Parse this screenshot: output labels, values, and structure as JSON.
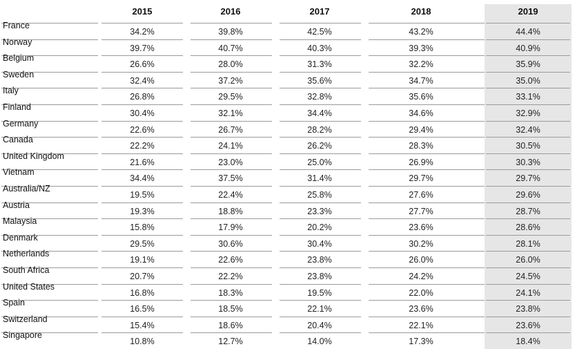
{
  "chart_data": {
    "type": "table",
    "columns": [
      "2015",
      "2016",
      "2017",
      "2018",
      "2019"
    ],
    "rows": [
      {
        "country": "France",
        "values": [
          "34.2%",
          "39.8%",
          "42.5%",
          "43.2%",
          "44.4%"
        ]
      },
      {
        "country": "Norway",
        "values": [
          "39.7%",
          "40.7%",
          "40.3%",
          "39.3%",
          "40.9%"
        ]
      },
      {
        "country": "Belgium",
        "values": [
          "26.6%",
          "28.0%",
          "31.3%",
          "32.2%",
          "35.9%"
        ]
      },
      {
        "country": "Sweden",
        "values": [
          "32.4%",
          "37.2%",
          "35.6%",
          "34.7%",
          "35.0%"
        ]
      },
      {
        "country": "Italy",
        "values": [
          "26.8%",
          "29.5%",
          "32.8%",
          "35.6%",
          "33.1%"
        ]
      },
      {
        "country": "Finland",
        "values": [
          "30.4%",
          "32.1%",
          "34.4%",
          "34.6%",
          "32.9%"
        ]
      },
      {
        "country": "Germany",
        "values": [
          "22.6%",
          "26.7%",
          "28.2%",
          "29.4%",
          "32.4%"
        ]
      },
      {
        "country": "Canada",
        "values": [
          "22.2%",
          "24.1%",
          "26.2%",
          "28.3%",
          "30.5%"
        ]
      },
      {
        "country": "United Kingdom",
        "values": [
          "21.6%",
          "23.0%",
          "25.0%",
          "26.9%",
          "30.3%"
        ]
      },
      {
        "country": "Vietnam",
        "values": [
          "34.4%",
          "37.5%",
          "31.4%",
          "29.7%",
          "29.7%"
        ]
      },
      {
        "country": "Australia/NZ",
        "values": [
          "19.5%",
          "22.4%",
          "25.8%",
          "27.6%",
          "29.6%"
        ]
      },
      {
        "country": "Austria",
        "values": [
          "19.3%",
          "18.8%",
          "23.3%",
          "27.7%",
          "28.7%"
        ]
      },
      {
        "country": "Malaysia",
        "values": [
          "15.8%",
          "17.9%",
          "20.2%",
          "23.6%",
          "28.6%"
        ]
      },
      {
        "country": "Denmark",
        "values": [
          "29.5%",
          "30.6%",
          "30.4%",
          "30.2%",
          "28.1%"
        ]
      },
      {
        "country": "Netherlands",
        "values": [
          "19.1%",
          "22.6%",
          "23.8%",
          "26.0%",
          "26.0%"
        ]
      },
      {
        "country": "South Africa",
        "values": [
          "20.7%",
          "22.2%",
          "23.8%",
          "24.2%",
          "24.5%"
        ]
      },
      {
        "country": "United States",
        "values": [
          "16.8%",
          "18.3%",
          "19.5%",
          "22.0%",
          "24.1%"
        ]
      },
      {
        "country": "Spain",
        "values": [
          "16.5%",
          "18.5%",
          "22.1%",
          "23.6%",
          "23.8%"
        ]
      },
      {
        "country": "Switzerland",
        "values": [
          "15.4%",
          "18.6%",
          "20.4%",
          "22.1%",
          "23.6%"
        ]
      },
      {
        "country": "Singapore",
        "values": [
          "10.8%",
          "12.7%",
          "14.0%",
          "17.3%",
          "18.4%"
        ]
      }
    ],
    "highlight_column": "2019",
    "highlight_color": "#e6e6e6",
    "rule_color": "#9a9a9a"
  }
}
